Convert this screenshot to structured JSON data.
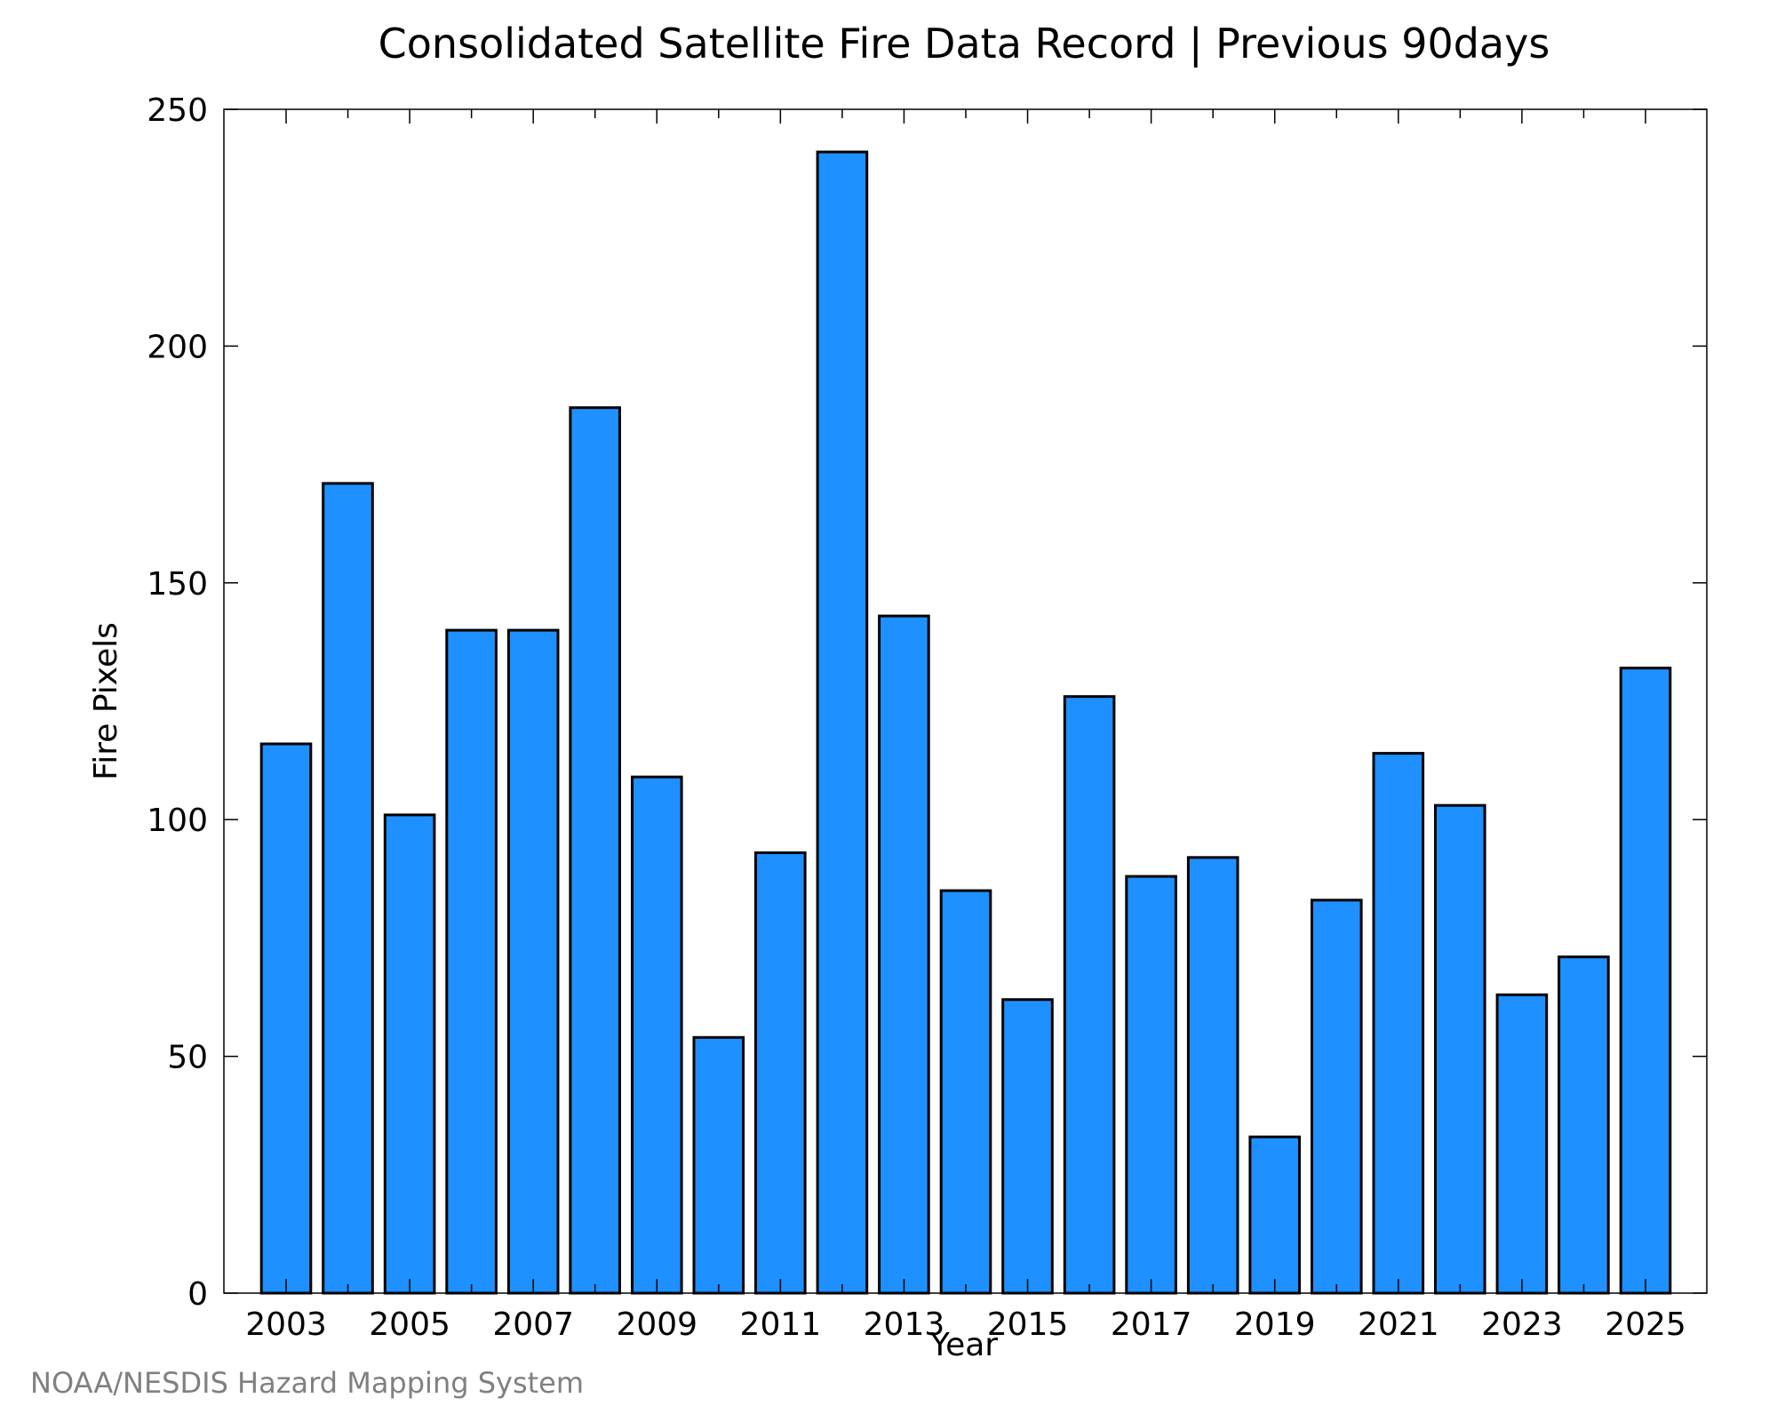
{
  "chart_data": {
    "type": "bar",
    "title": "Consolidated Satellite Fire Data Record | Previous 90days",
    "xlabel": "Year",
    "ylabel": "Fire Pixels",
    "categories": [
      "2003",
      "2004",
      "2005",
      "2006",
      "2007",
      "2008",
      "2009",
      "2010",
      "2011",
      "2012",
      "2013",
      "2014",
      "2015",
      "2016",
      "2017",
      "2018",
      "2019",
      "2020",
      "2021",
      "2022",
      "2023",
      "2024",
      "2025"
    ],
    "values": [
      116,
      171,
      101,
      140,
      140,
      187,
      109,
      54,
      93,
      241,
      143,
      85,
      62,
      126,
      88,
      92,
      33,
      83,
      114,
      103,
      63,
      71,
      132
    ],
    "x_tick_labels": [
      "2003",
      "2005",
      "2007",
      "2009",
      "2011",
      "2013",
      "2015",
      "2017",
      "2019",
      "2021",
      "2023",
      "2025"
    ],
    "y_tick_labels": [
      "0",
      "50",
      "100",
      "150",
      "200",
      "250"
    ],
    "ylim": [
      0,
      250
    ],
    "grid": false,
    "bar_color": "#1e90ff",
    "edge_color": "#000000"
  },
  "credit": "NOAA/NESDIS Hazard Mapping System"
}
